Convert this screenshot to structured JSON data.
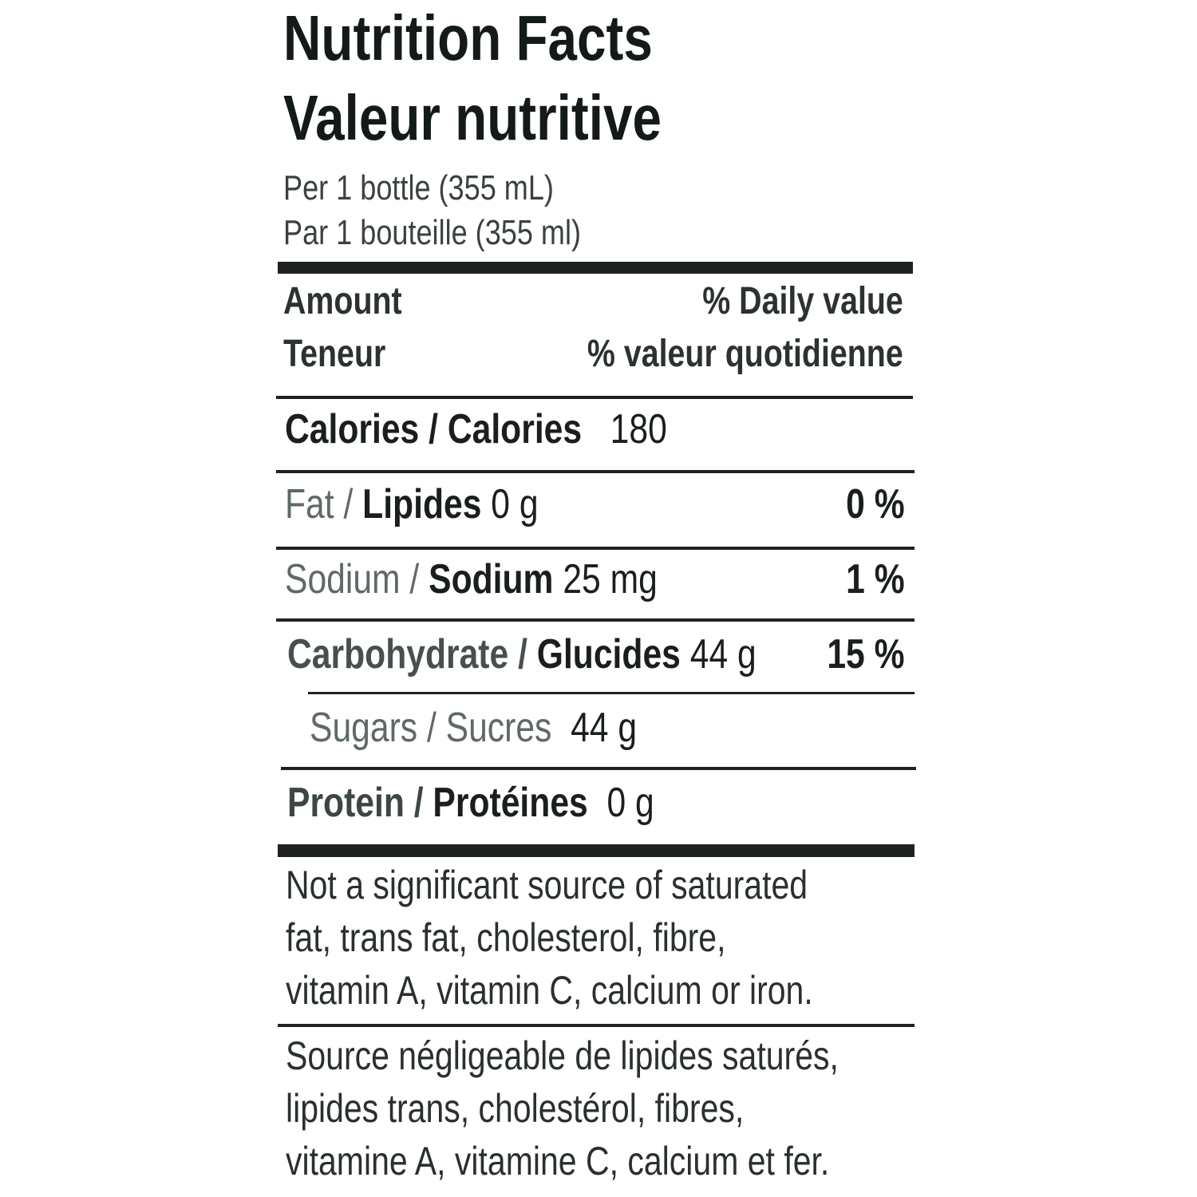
{
  "title_en": "Nutrition Facts",
  "title_fr": "Valeur nutritive",
  "serving_en": "Per 1 bottle (355 mL)",
  "serving_fr": "Par 1 bouteille (355 ml)",
  "header": {
    "amount_en": "Amount",
    "amount_fr": "Teneur",
    "dv_en": "% Daily value",
    "dv_fr": "% valeur quotidienne"
  },
  "rows": [
    {
      "label_en": "Calories /",
      "label_fr": "Calories",
      "amount": "180",
      "dv": ""
    },
    {
      "label_en": "Fat /",
      "label_fr": "Lipides",
      "amount": "0 g",
      "dv": "0 %"
    },
    {
      "label_en": "Sodium /",
      "label_fr": "Sodium",
      "amount": "25 mg",
      "dv": "1 %"
    },
    {
      "label_en": "Carbohydrate /",
      "label_fr": "Glucides",
      "amount": "44 g",
      "dv": "15 %"
    },
    {
      "label_en": "Sugars /",
      "label_fr": "Sucres",
      "amount": "44 g",
      "dv": ""
    },
    {
      "label_en": "Protein /",
      "label_fr": "Protéines",
      "amount": "0 g",
      "dv": ""
    }
  ],
  "footnote_en": [
    "Not a significant source of saturated",
    "fat, trans fat, cholesterol, fibre,",
    "vitamin A, vitamin C, calcium or iron."
  ],
  "footnote_fr": [
    "Source négligeable de lipides saturés,",
    "lipides trans, cholestérol, fibres,",
    "vitamine A, vitamine C, calcium et fer."
  ]
}
